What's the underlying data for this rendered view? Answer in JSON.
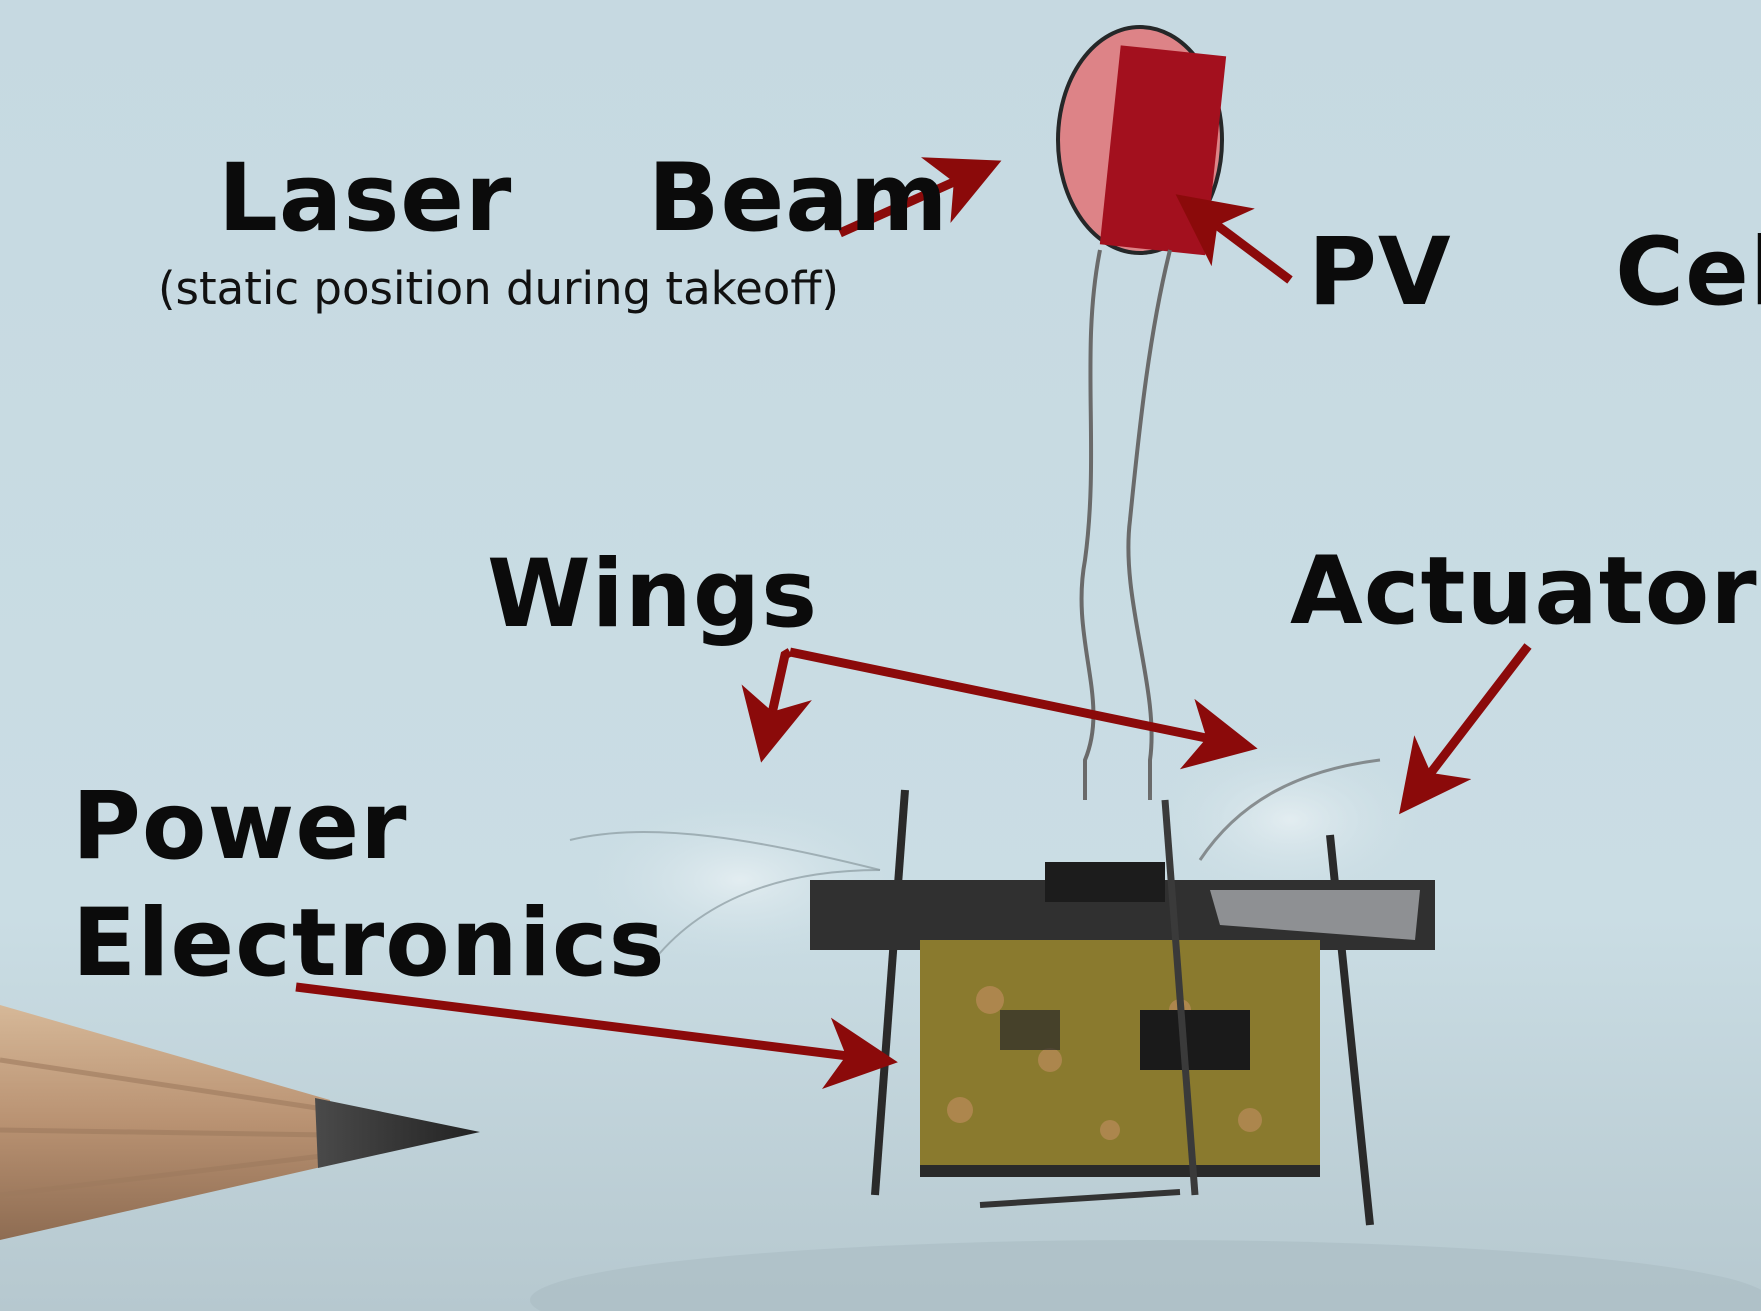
{
  "labels": {
    "laser_beam": "Laser  Beam",
    "laser_beam_note": "(static position during takeoff)",
    "pv_cell": "PV  Cell",
    "wings": "Wings",
    "actuator": "Actuator",
    "power": "Power",
    "electronics": "Electronics"
  },
  "colors": {
    "background": "#c9dbe2",
    "arrow": "#8b0a0a",
    "laser_spot": "#e07a7e",
    "pv_cell": "#a3101e",
    "text": "#0b0b0b"
  }
}
